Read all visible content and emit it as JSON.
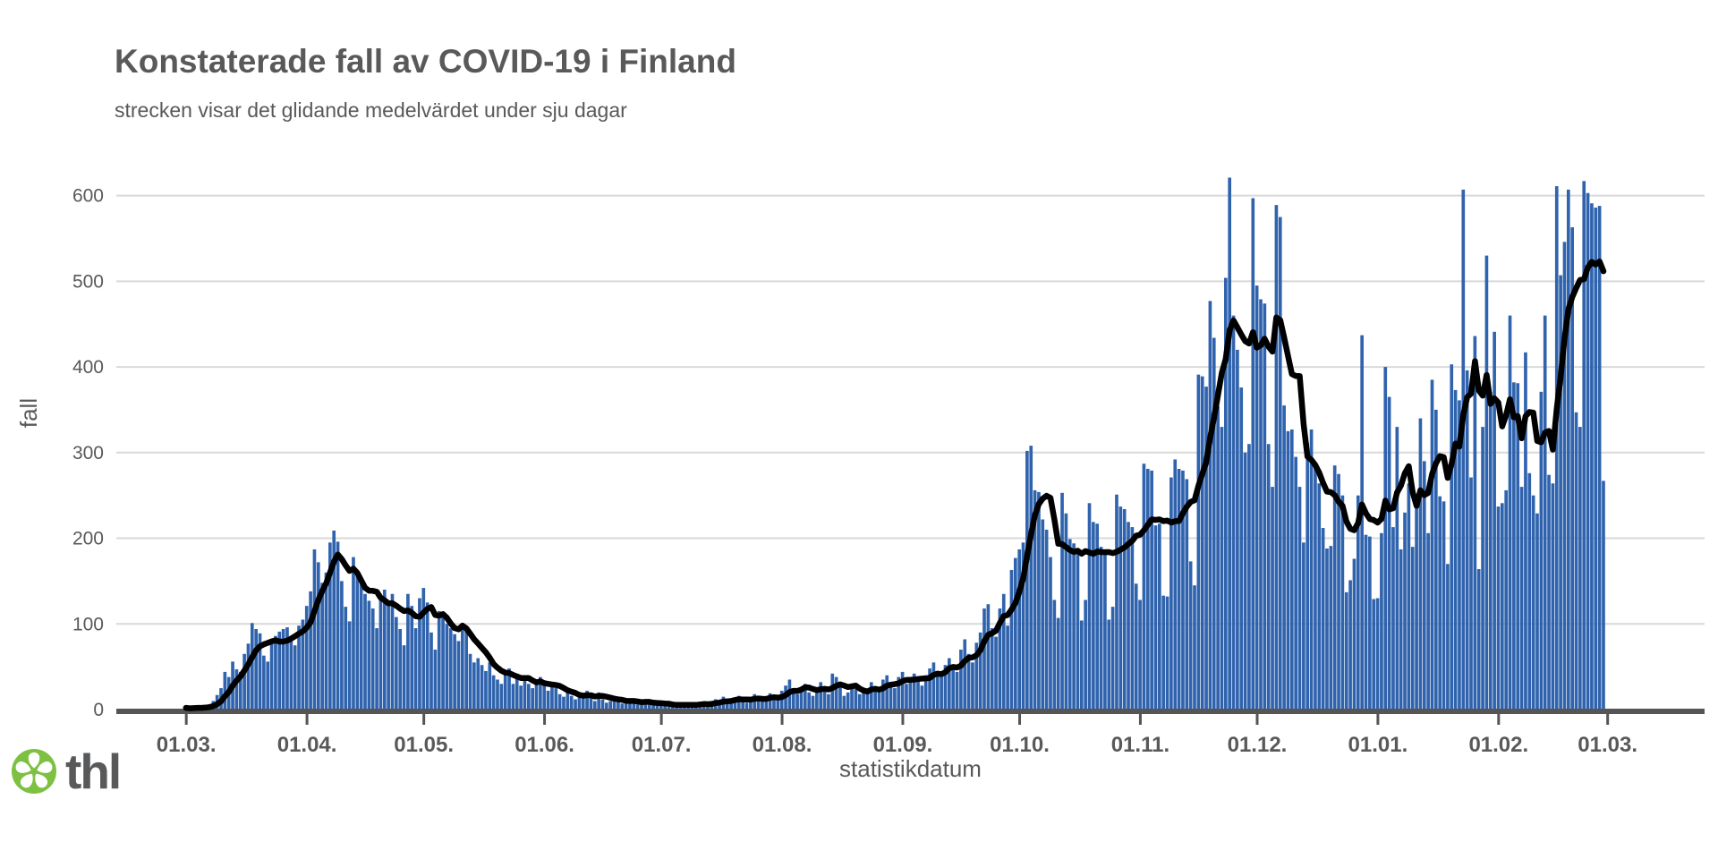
{
  "header": {
    "title": "Konstaterade fall av COVID-19 i Finland",
    "subtitle": "strecken visar det glidande medelvärdet under sju dagar"
  },
  "logo": {
    "text": "thl",
    "text_color": "#58595b",
    "flower_color": "#7ec142"
  },
  "chart_data": {
    "type": "bar",
    "title": "Konstaterade fall av COVID-19 i Finland",
    "subtitle": "strecken visar det glidande medelvärdet under sju dagar",
    "xlabel": "statistikdatum",
    "ylabel": "fall",
    "yticks": [
      0,
      100,
      200,
      300,
      400,
      500,
      600
    ],
    "ylim": [
      0,
      640
    ],
    "grid": "horizontal",
    "legend": "none",
    "moving_average_window": 7,
    "x_tick_labels": [
      "01.03.",
      "01.04.",
      "01.05.",
      "01.06.",
      "01.07.",
      "01.08.",
      "01.09.",
      "01.10.",
      "01.11.",
      "01.12.",
      "01.01.",
      "01.02.",
      "01.03."
    ],
    "month_start_day_index": [
      0,
      31,
      61,
      92,
      122,
      153,
      184,
      214,
      245,
      275,
      306,
      337,
      365
    ],
    "bar_color": "#3063ad",
    "line_color": "#000000",
    "grid_color": "#d9d9d9",
    "axis_color": "#555555",
    "text_color": "#595959",
    "values": [
      2,
      1,
      2,
      3,
      2,
      4,
      6,
      10,
      17,
      25,
      44,
      38,
      56,
      47,
      44,
      65,
      77,
      101,
      94,
      89,
      63,
      56,
      77,
      86,
      91,
      94,
      96,
      80,
      75,
      98,
      105,
      121,
      138,
      187,
      172,
      148,
      160,
      195,
      209,
      196,
      150,
      120,
      103,
      178,
      161,
      148,
      135,
      127,
      118,
      95,
      130,
      140,
      123,
      135,
      108,
      94,
      75,
      135,
      121,
      95,
      130,
      142,
      125,
      90,
      70,
      115,
      108,
      100,
      95,
      88,
      80,
      100,
      92,
      65,
      55,
      60,
      52,
      45,
      55,
      40,
      35,
      30,
      45,
      48,
      30,
      42,
      28,
      35,
      30,
      25,
      32,
      38,
      28,
      22,
      30,
      25,
      18,
      15,
      20,
      16,
      12,
      14,
      18,
      22,
      15,
      10,
      20,
      12,
      8,
      10,
      14,
      9,
      7,
      12,
      10,
      8,
      6,
      9,
      11,
      7,
      5,
      8,
      6,
      4,
      7,
      5,
      3,
      6,
      8,
      5,
      4,
      7,
      9,
      6,
      5,
      10,
      12,
      8,
      15,
      11,
      9,
      13,
      16,
      10,
      8,
      14,
      18,
      12,
      10,
      15,
      19,
      13,
      11,
      22,
      28,
      35,
      25,
      18,
      24,
      30,
      20,
      16,
      26,
      32,
      22,
      18,
      42,
      38,
      28,
      16,
      20,
      28,
      24,
      18,
      22,
      20,
      32,
      26,
      20,
      35,
      40,
      30,
      25,
      38,
      44,
      30,
      36,
      42,
      35,
      28,
      40,
      48,
      55,
      45,
      38,
      52,
      60,
      50,
      44,
      70,
      82,
      65,
      55,
      78,
      90,
      118,
      123,
      95,
      85,
      118,
      135,
      98,
      163,
      177,
      187,
      195,
      302,
      308,
      256,
      254,
      222,
      210,
      178,
      128,
      107,
      253,
      229,
      199,
      194,
      188,
      104,
      128,
      241,
      219,
      217,
      190,
      187,
      105,
      120,
      251,
      237,
      234,
      219,
      213,
      147,
      128,
      287,
      281,
      279,
      215,
      217,
      133,
      132,
      271,
      292,
      281,
      279,
      269,
      173,
      145,
      391,
      389,
      377,
      477,
      434,
      354,
      330,
      504,
      621,
      460,
      420,
      376,
      300,
      310,
      597,
      495,
      479,
      474,
      310,
      260,
      589,
      575,
      355,
      325,
      327,
      295,
      260,
      195,
      311,
      327,
      284,
      264,
      212,
      188,
      191,
      285,
      275,
      250,
      137,
      151,
      176,
      250,
      437,
      204,
      202,
      129,
      130,
      206,
      400,
      365,
      213,
      330,
      187,
      230,
      264,
      190,
      251,
      340,
      290,
      206,
      385,
      350,
      249,
      243,
      170,
      403,
      373,
      361,
      607,
      396,
      271,
      436,
      164,
      330,
      530,
      371,
      441,
      237,
      241,
      256,
      460,
      382,
      381,
      260,
      417,
      276,
      250,
      229,
      371,
      460,
      274,
      264,
      611,
      507,
      546,
      607,
      563,
      347,
      330,
      617,
      603,
      591,
      586,
      588,
      267
    ]
  }
}
